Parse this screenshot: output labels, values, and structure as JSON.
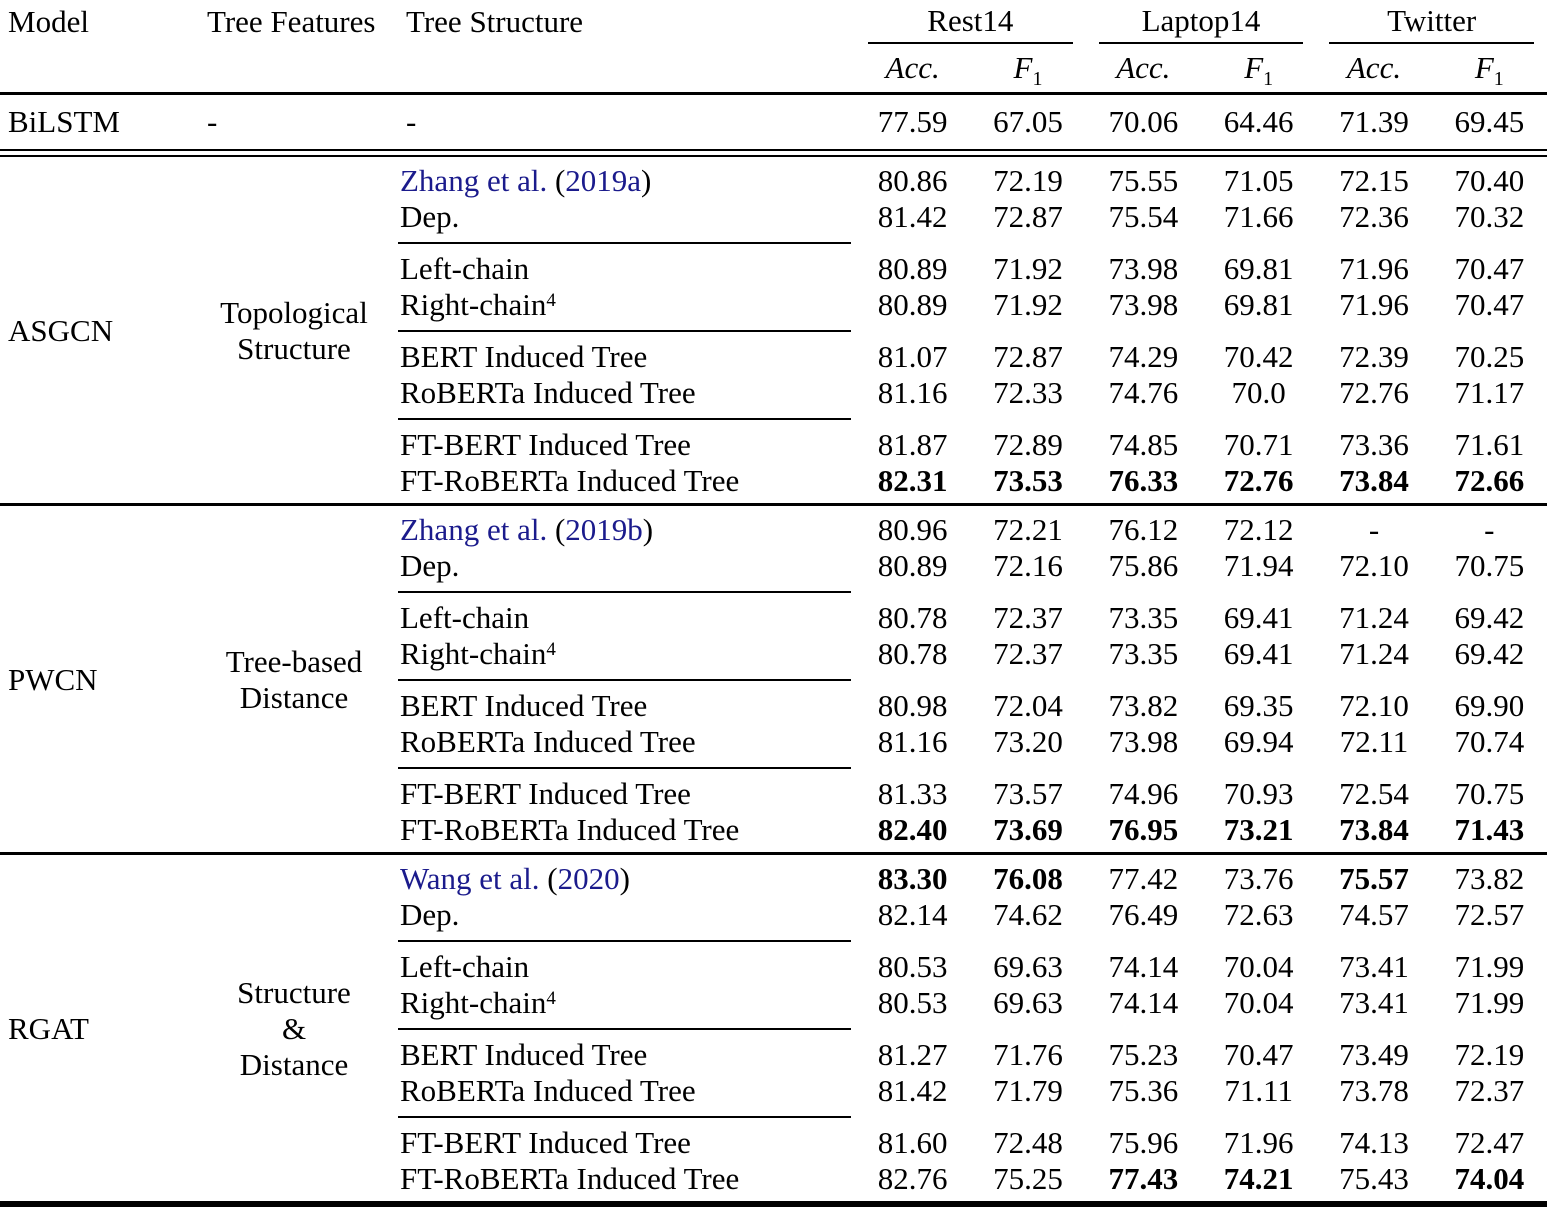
{
  "header": {
    "model": "Model",
    "tree_features": "Tree Features",
    "tree_structure": "Tree Structure",
    "datasets": [
      "Rest14",
      "Laptop14",
      "Twitter"
    ],
    "metric_acc": "Acc.",
    "metric_f": "F",
    "metric_f_sub": "1"
  },
  "baseline_row": {
    "model": "BiLSTM",
    "tree_features": "-",
    "tree_structure": "-",
    "values": [
      "77.59",
      "67.05",
      "70.06",
      "64.46",
      "71.39",
      "69.45"
    ]
  },
  "link_color": "#1b1b8c",
  "blocks": [
    {
      "model": "ASGCN",
      "features_lines": [
        "Topological",
        "Structure"
      ],
      "groups": [
        {
          "rows": [
            {
              "cite_name": "Zhang et al.",
              "cite_open": " (",
              "cite_year": "2019a",
              "cite_close": ")",
              "values": [
                "80.86",
                "72.19",
                "75.55",
                "71.05",
                "72.15",
                "70.40"
              ]
            },
            {
              "label": "Dep.",
              "values": [
                "81.42",
                "72.87",
                "75.54",
                "71.66",
                "72.36",
                "70.32"
              ]
            }
          ]
        },
        {
          "rows": [
            {
              "label": "Left-chain",
              "values": [
                "80.89",
                "71.92",
                "73.98",
                "69.81",
                "71.96",
                "70.47"
              ]
            },
            {
              "label": "Right-chain",
              "sup": "4",
              "values": [
                "80.89",
                "71.92",
                "73.98",
                "69.81",
                "71.96",
                "70.47"
              ]
            }
          ]
        },
        {
          "rows": [
            {
              "label": "BERT Induced Tree",
              "values": [
                "81.07",
                "72.87",
                "74.29",
                "70.42",
                "72.39",
                "70.25"
              ]
            },
            {
              "label": "RoBERTa Induced Tree",
              "values": [
                "81.16",
                "72.33",
                "74.76",
                "70.0",
                "72.76",
                "71.17"
              ]
            }
          ]
        },
        {
          "rows": [
            {
              "label": "FT-BERT Induced Tree",
              "values": [
                "81.87",
                "72.89",
                "74.85",
                "70.71",
                "73.36",
                "71.61"
              ]
            },
            {
              "label": "FT-RoBERTa Induced Tree",
              "bold": "all",
              "values": [
                "82.31",
                "73.53",
                "76.33",
                "72.76",
                "73.84",
                "72.66"
              ]
            }
          ]
        }
      ]
    },
    {
      "model": "PWCN",
      "features_lines": [
        "Tree-based",
        "Distance"
      ],
      "groups": [
        {
          "rows": [
            {
              "cite_name": "Zhang et al.",
              "cite_open": " (",
              "cite_year": "2019b",
              "cite_close": ")",
              "values": [
                "80.96",
                "72.21",
                "76.12",
                "72.12",
                "-",
                "-"
              ]
            },
            {
              "label": "Dep.",
              "values": [
                "80.89",
                "72.16",
                "75.86",
                "71.94",
                "72.10",
                "70.75"
              ]
            }
          ]
        },
        {
          "rows": [
            {
              "label": "Left-chain",
              "values": [
                "80.78",
                "72.37",
                "73.35",
                "69.41",
                "71.24",
                "69.42"
              ]
            },
            {
              "label": "Right-chain",
              "sup": "4",
              "values": [
                "80.78",
                "72.37",
                "73.35",
                "69.41",
                "71.24",
                "69.42"
              ]
            }
          ]
        },
        {
          "rows": [
            {
              "label": "BERT Induced Tree",
              "values": [
                "80.98",
                "72.04",
                "73.82",
                "69.35",
                "72.10",
                "69.90"
              ]
            },
            {
              "label": "RoBERTa Induced Tree",
              "values": [
                "81.16",
                "73.20",
                "73.98",
                "69.94",
                "72.11",
                "70.74"
              ]
            }
          ]
        },
        {
          "rows": [
            {
              "label": "FT-BERT Induced Tree",
              "values": [
                "81.33",
                "73.57",
                "74.96",
                "70.93",
                "72.54",
                "70.75"
              ]
            },
            {
              "label": "FT-RoBERTa Induced Tree",
              "bold": "all",
              "values": [
                "82.40",
                "73.69",
                "76.95",
                "73.21",
                "73.84",
                "71.43"
              ]
            }
          ]
        }
      ]
    },
    {
      "model": "RGAT",
      "features_lines": [
        "Structure",
        "&",
        "Distance"
      ],
      "groups": [
        {
          "rows": [
            {
              "cite_name": "Wang et al.",
              "cite_open": " (",
              "cite_year": "2020",
              "cite_close": ")",
              "bold": [
                0,
                1,
                4
              ],
              "values": [
                "83.30",
                "76.08",
                "77.42",
                "73.76",
                "75.57",
                "73.82"
              ]
            },
            {
              "label": "Dep.",
              "values": [
                "82.14",
                "74.62",
                "76.49",
                "72.63",
                "74.57",
                "72.57"
              ]
            }
          ]
        },
        {
          "rows": [
            {
              "label": "Left-chain",
              "values": [
                "80.53",
                "69.63",
                "74.14",
                "70.04",
                "73.41",
                "71.99"
              ]
            },
            {
              "label": "Right-chain",
              "sup": "4",
              "values": [
                "80.53",
                "69.63",
                "74.14",
                "70.04",
                "73.41",
                "71.99"
              ]
            }
          ]
        },
        {
          "rows": [
            {
              "label": "BERT Induced Tree",
              "values": [
                "81.27",
                "71.76",
                "75.23",
                "70.47",
                "73.49",
                "72.19"
              ]
            },
            {
              "label": "RoBERTa Induced Tree",
              "values": [
                "81.42",
                "71.79",
                "75.36",
                "71.11",
                "73.78",
                "72.37"
              ]
            }
          ]
        },
        {
          "rows": [
            {
              "label": "FT-BERT Induced Tree",
              "values": [
                "81.60",
                "72.48",
                "75.96",
                "71.96",
                "74.13",
                "72.47"
              ]
            },
            {
              "label": "FT-RoBERTa Induced Tree",
              "bold": [
                2,
                3,
                5
              ],
              "values": [
                "82.76",
                "75.25",
                "77.43",
                "74.21",
                "75.43",
                "74.04"
              ]
            }
          ]
        }
      ]
    }
  ]
}
